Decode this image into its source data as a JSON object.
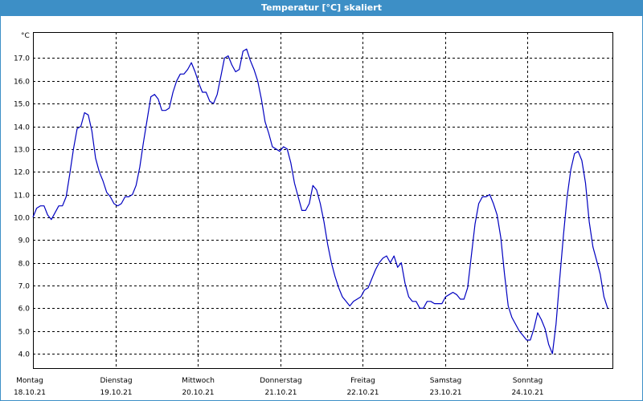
{
  "window": {
    "title": "Temperatur [°C] skaliert"
  },
  "chart_data": {
    "type": "line",
    "title": "Temperatur [°C] skaliert",
    "ylabel": "°C",
    "ylim": [
      3.5,
      18.0
    ],
    "yticks": [
      "4.0",
      "5.0",
      "6.0",
      "7.0",
      "8.0",
      "9.0",
      "10.0",
      "11.0",
      "12.0",
      "13.0",
      "14.0",
      "15.0",
      "16.0",
      "17.0"
    ],
    "grid": true,
    "days": [
      {
        "name": "Montag",
        "date": "18.10.21"
      },
      {
        "name": "Dienstag",
        "date": "19.10.21"
      },
      {
        "name": "Mittwoch",
        "date": "20.10.21"
      },
      {
        "name": "Donnerstag",
        "date": "21.10.21"
      },
      {
        "name": "Freitag",
        "date": "22.10.21"
      },
      {
        "name": "Samstag",
        "date": "23.10.21"
      },
      {
        "name": "Sonntag",
        "date": "24.10.21"
      }
    ],
    "series": [
      {
        "color": "#0000c0",
        "values": [
          10.0,
          10.4,
          10.5,
          10.5,
          10.1,
          9.9,
          10.2,
          10.5,
          10.5,
          10.9,
          11.9,
          13.0,
          13.9,
          14.0,
          14.6,
          14.5,
          13.8,
          12.6,
          12.0,
          11.6,
          11.1,
          10.9,
          10.6,
          10.5,
          10.6,
          10.9,
          10.9,
          11.0,
          11.4,
          12.2,
          13.3,
          14.3,
          15.3,
          15.4,
          15.2,
          14.7,
          14.7,
          14.8,
          15.5,
          16.0,
          16.3,
          16.3,
          16.5,
          16.8,
          16.4,
          15.9,
          15.5,
          15.5,
          15.1,
          15.0,
          15.4,
          16.2,
          17.0,
          17.1,
          16.7,
          16.4,
          16.5,
          17.3,
          17.4,
          16.9,
          16.5,
          16.0,
          15.2,
          14.2,
          13.7,
          13.1,
          13.0,
          12.9,
          13.1,
          13.0,
          12.4,
          11.5,
          10.9,
          10.3,
          10.3,
          10.6,
          11.4,
          11.2,
          10.6,
          9.8,
          8.8,
          8.0,
          7.4,
          6.9,
          6.5,
          6.3,
          6.1,
          6.3,
          6.4,
          6.5,
          6.8,
          6.9,
          7.3,
          7.7,
          8.0,
          8.2,
          8.3,
          8.0,
          8.3,
          7.8,
          8.0,
          7.1,
          6.5,
          6.3,
          6.3,
          6.0,
          6.0,
          6.3,
          6.3,
          6.2,
          6.2,
          6.2,
          6.5,
          6.6,
          6.7,
          6.6,
          6.4,
          6.4,
          6.9,
          8.3,
          9.7,
          10.6,
          10.9,
          10.9,
          11.0,
          10.6,
          10.1,
          9.1,
          7.5,
          6.1,
          5.6,
          5.3,
          5.0,
          4.8,
          4.6,
          4.6,
          5.1,
          5.8,
          5.5,
          5.1,
          4.4,
          4.0,
          5.3,
          7.3,
          9.2,
          10.9,
          12.1,
          12.8,
          12.9,
          12.5,
          11.5,
          9.8,
          8.7,
          8.1,
          7.5,
          6.5,
          6.0
        ]
      }
    ]
  }
}
